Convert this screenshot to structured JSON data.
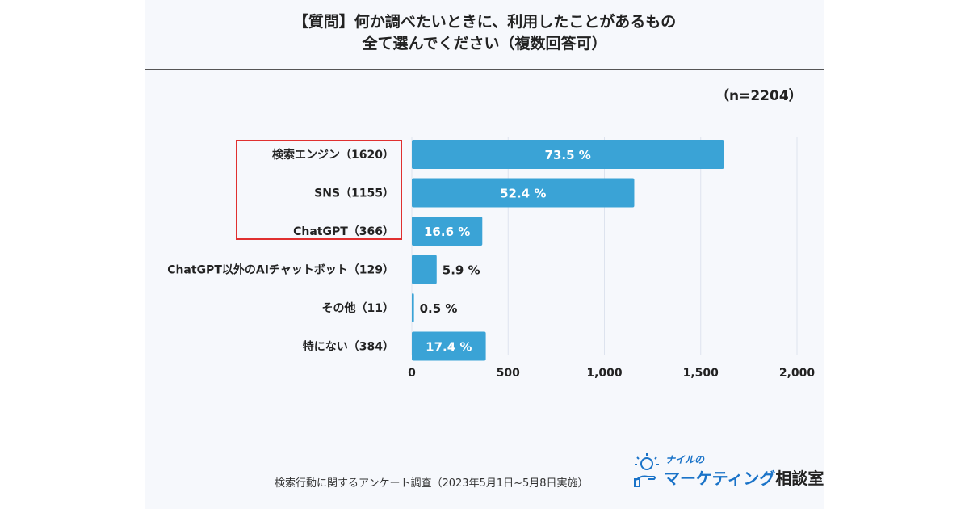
{
  "title": {
    "line1": "【質問】何か調べたいときに、利用したことがあるもの",
    "line2": "全て選んでください（複数回答可）"
  },
  "sample_size": "（n=2204）",
  "source": "検索行動に関するアンケート調査（2023年5月1日~5月8日実施）",
  "logo": {
    "small": "ナイルの",
    "main": "マーケティング",
    "suffix": "相談室"
  },
  "colors": {
    "bar": "#3aa3d6",
    "highlight_border": "#e03030",
    "grid": "#dde3ee"
  },
  "chart_data": {
    "type": "bar",
    "orientation": "horizontal",
    "categories": [
      "検索エンジン（1620）",
      "SNS（1155）",
      "ChatGPT（366）",
      "ChatGPT以外のAIチャットボット（129）",
      "その他（11）",
      "特にない（384）"
    ],
    "values": [
      1620,
      1155,
      366,
      129,
      11,
      384
    ],
    "percent_labels": [
      "73.5 %",
      "52.4 %",
      "16.6 %",
      "5.9 %",
      "0.5 %",
      "17.4 %"
    ],
    "xlim": [
      0,
      2000
    ],
    "xticks": [
      0,
      500,
      1000,
      1500,
      2000
    ],
    "xtick_labels": [
      "0",
      "500",
      "1,000",
      "1,500",
      "2,000"
    ],
    "highlighted_categories": [
      "検索エンジン（1620）",
      "SNS（1155）",
      "ChatGPT（366）"
    ],
    "title": "【質問】何か調べたいときに、利用したことがあるもの 全て選んでください（複数回答可）",
    "xlabel": "",
    "ylabel": ""
  }
}
